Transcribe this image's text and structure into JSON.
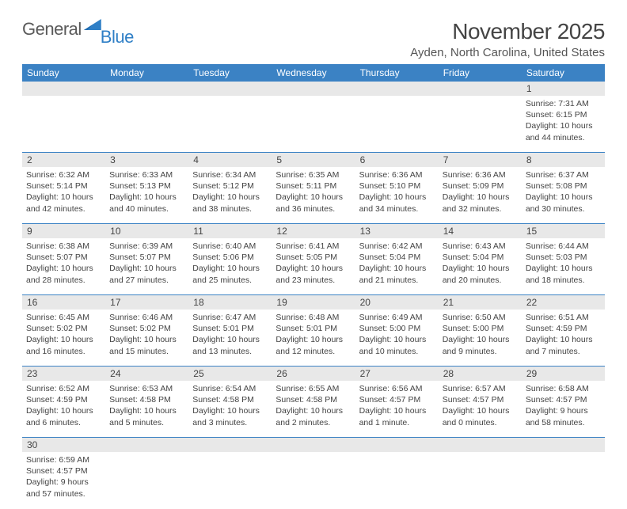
{
  "logo": {
    "general": "General",
    "blue": "Blue"
  },
  "title": "November 2025",
  "location": "Ayden, North Carolina, United States",
  "day_headers": [
    "Sunday",
    "Monday",
    "Tuesday",
    "Wednesday",
    "Thursday",
    "Friday",
    "Saturday"
  ],
  "colors": {
    "header_bg": "#3b82c4",
    "daynum_bg": "#e8e8e8",
    "rule": "#3b82c4"
  },
  "weeks": [
    [
      null,
      null,
      null,
      null,
      null,
      null,
      {
        "n": "1",
        "sunrise": "Sunrise: 7:31 AM",
        "sunset": "Sunset: 6:15 PM",
        "d1": "Daylight: 10 hours",
        "d2": "and 44 minutes."
      }
    ],
    [
      {
        "n": "2",
        "sunrise": "Sunrise: 6:32 AM",
        "sunset": "Sunset: 5:14 PM",
        "d1": "Daylight: 10 hours",
        "d2": "and 42 minutes."
      },
      {
        "n": "3",
        "sunrise": "Sunrise: 6:33 AM",
        "sunset": "Sunset: 5:13 PM",
        "d1": "Daylight: 10 hours",
        "d2": "and 40 minutes."
      },
      {
        "n": "4",
        "sunrise": "Sunrise: 6:34 AM",
        "sunset": "Sunset: 5:12 PM",
        "d1": "Daylight: 10 hours",
        "d2": "and 38 minutes."
      },
      {
        "n": "5",
        "sunrise": "Sunrise: 6:35 AM",
        "sunset": "Sunset: 5:11 PM",
        "d1": "Daylight: 10 hours",
        "d2": "and 36 minutes."
      },
      {
        "n": "6",
        "sunrise": "Sunrise: 6:36 AM",
        "sunset": "Sunset: 5:10 PM",
        "d1": "Daylight: 10 hours",
        "d2": "and 34 minutes."
      },
      {
        "n": "7",
        "sunrise": "Sunrise: 6:36 AM",
        "sunset": "Sunset: 5:09 PM",
        "d1": "Daylight: 10 hours",
        "d2": "and 32 minutes."
      },
      {
        "n": "8",
        "sunrise": "Sunrise: 6:37 AM",
        "sunset": "Sunset: 5:08 PM",
        "d1": "Daylight: 10 hours",
        "d2": "and 30 minutes."
      }
    ],
    [
      {
        "n": "9",
        "sunrise": "Sunrise: 6:38 AM",
        "sunset": "Sunset: 5:07 PM",
        "d1": "Daylight: 10 hours",
        "d2": "and 28 minutes."
      },
      {
        "n": "10",
        "sunrise": "Sunrise: 6:39 AM",
        "sunset": "Sunset: 5:07 PM",
        "d1": "Daylight: 10 hours",
        "d2": "and 27 minutes."
      },
      {
        "n": "11",
        "sunrise": "Sunrise: 6:40 AM",
        "sunset": "Sunset: 5:06 PM",
        "d1": "Daylight: 10 hours",
        "d2": "and 25 minutes."
      },
      {
        "n": "12",
        "sunrise": "Sunrise: 6:41 AM",
        "sunset": "Sunset: 5:05 PM",
        "d1": "Daylight: 10 hours",
        "d2": "and 23 minutes."
      },
      {
        "n": "13",
        "sunrise": "Sunrise: 6:42 AM",
        "sunset": "Sunset: 5:04 PM",
        "d1": "Daylight: 10 hours",
        "d2": "and 21 minutes."
      },
      {
        "n": "14",
        "sunrise": "Sunrise: 6:43 AM",
        "sunset": "Sunset: 5:04 PM",
        "d1": "Daylight: 10 hours",
        "d2": "and 20 minutes."
      },
      {
        "n": "15",
        "sunrise": "Sunrise: 6:44 AM",
        "sunset": "Sunset: 5:03 PM",
        "d1": "Daylight: 10 hours",
        "d2": "and 18 minutes."
      }
    ],
    [
      {
        "n": "16",
        "sunrise": "Sunrise: 6:45 AM",
        "sunset": "Sunset: 5:02 PM",
        "d1": "Daylight: 10 hours",
        "d2": "and 16 minutes."
      },
      {
        "n": "17",
        "sunrise": "Sunrise: 6:46 AM",
        "sunset": "Sunset: 5:02 PM",
        "d1": "Daylight: 10 hours",
        "d2": "and 15 minutes."
      },
      {
        "n": "18",
        "sunrise": "Sunrise: 6:47 AM",
        "sunset": "Sunset: 5:01 PM",
        "d1": "Daylight: 10 hours",
        "d2": "and 13 minutes."
      },
      {
        "n": "19",
        "sunrise": "Sunrise: 6:48 AM",
        "sunset": "Sunset: 5:01 PM",
        "d1": "Daylight: 10 hours",
        "d2": "and 12 minutes."
      },
      {
        "n": "20",
        "sunrise": "Sunrise: 6:49 AM",
        "sunset": "Sunset: 5:00 PM",
        "d1": "Daylight: 10 hours",
        "d2": "and 10 minutes."
      },
      {
        "n": "21",
        "sunrise": "Sunrise: 6:50 AM",
        "sunset": "Sunset: 5:00 PM",
        "d1": "Daylight: 10 hours",
        "d2": "and 9 minutes."
      },
      {
        "n": "22",
        "sunrise": "Sunrise: 6:51 AM",
        "sunset": "Sunset: 4:59 PM",
        "d1": "Daylight: 10 hours",
        "d2": "and 7 minutes."
      }
    ],
    [
      {
        "n": "23",
        "sunrise": "Sunrise: 6:52 AM",
        "sunset": "Sunset: 4:59 PM",
        "d1": "Daylight: 10 hours",
        "d2": "and 6 minutes."
      },
      {
        "n": "24",
        "sunrise": "Sunrise: 6:53 AM",
        "sunset": "Sunset: 4:58 PM",
        "d1": "Daylight: 10 hours",
        "d2": "and 5 minutes."
      },
      {
        "n": "25",
        "sunrise": "Sunrise: 6:54 AM",
        "sunset": "Sunset: 4:58 PM",
        "d1": "Daylight: 10 hours",
        "d2": "and 3 minutes."
      },
      {
        "n": "26",
        "sunrise": "Sunrise: 6:55 AM",
        "sunset": "Sunset: 4:58 PM",
        "d1": "Daylight: 10 hours",
        "d2": "and 2 minutes."
      },
      {
        "n": "27",
        "sunrise": "Sunrise: 6:56 AM",
        "sunset": "Sunset: 4:57 PM",
        "d1": "Daylight: 10 hours",
        "d2": "and 1 minute."
      },
      {
        "n": "28",
        "sunrise": "Sunrise: 6:57 AM",
        "sunset": "Sunset: 4:57 PM",
        "d1": "Daylight: 10 hours",
        "d2": "and 0 minutes."
      },
      {
        "n": "29",
        "sunrise": "Sunrise: 6:58 AM",
        "sunset": "Sunset: 4:57 PM",
        "d1": "Daylight: 9 hours",
        "d2": "and 58 minutes."
      }
    ],
    [
      {
        "n": "30",
        "sunrise": "Sunrise: 6:59 AM",
        "sunset": "Sunset: 4:57 PM",
        "d1": "Daylight: 9 hours",
        "d2": "and 57 minutes."
      },
      null,
      null,
      null,
      null,
      null,
      null
    ]
  ]
}
